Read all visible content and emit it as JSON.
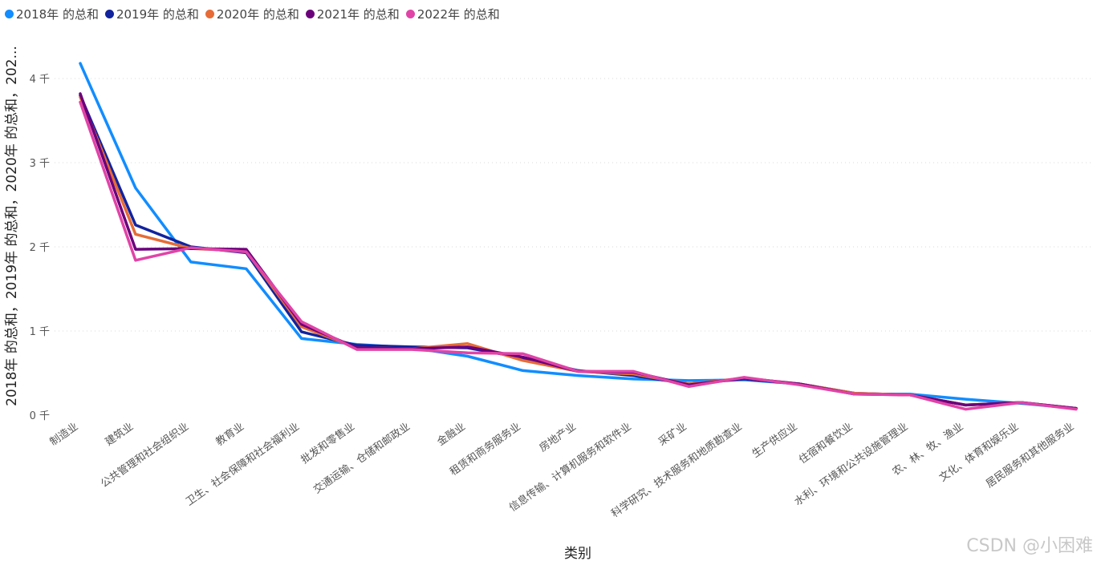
{
  "chart_data": {
    "type": "line",
    "title": "",
    "xlabel": "类别",
    "ylabel": "2018年 的总和，2019年 的总和，2020年 的总和，202...",
    "ylim": [
      0,
      4.5
    ],
    "yticks": [
      0,
      1,
      2,
      3,
      4
    ],
    "ytick_labels": [
      "0 千",
      "1 千",
      "2 千",
      "3 千",
      "4 千"
    ],
    "grid": true,
    "legend_position": "top-left",
    "categories": [
      "制造业",
      "建筑业",
      "公共管理和社会组织业",
      "教育业",
      "卫生、社会保障和社会福利业",
      "批发和零售业",
      "交通运输、仓储和邮政业",
      "金融业",
      "租赁和商务服务业",
      "房地产业",
      "信息传输、计算机服务和软件业",
      "采矿业",
      "科学研究、技术服务和地质勘查业",
      "生产供应业",
      "住宿和餐饮业",
      "水利、环境和公共设施管理业",
      "农、林、牧、渔业",
      "文化、体育和娱乐业",
      "居民服务和其他服务业"
    ],
    "series": [
      {
        "name": "2018年 的总和",
        "color": "#118DFF",
        "values": [
          4.18,
          2.7,
          1.82,
          1.74,
          0.91,
          0.84,
          0.8,
          0.7,
          0.53,
          0.47,
          0.43,
          0.41,
          0.42,
          0.37,
          0.25,
          0.25,
          0.19,
          0.14,
          0.08
        ]
      },
      {
        "name": "2019年 的总和",
        "color": "#12239E",
        "values": [
          3.8,
          2.26,
          2.0,
          1.93,
          0.99,
          0.83,
          0.81,
          0.8,
          0.68,
          0.53,
          0.47,
          0.37,
          0.43,
          0.37,
          0.26,
          0.24,
          0.12,
          0.15,
          0.08
        ]
      },
      {
        "name": "2020年 的总和",
        "color": "#E66C37",
        "values": [
          3.78,
          2.15,
          1.98,
          1.95,
          1.05,
          0.8,
          0.79,
          0.85,
          0.65,
          0.52,
          0.49,
          0.37,
          0.44,
          0.37,
          0.26,
          0.24,
          0.12,
          0.15,
          0.08
        ]
      },
      {
        "name": "2021年 的总和",
        "color": "#6B007B",
        "values": [
          3.82,
          1.97,
          1.98,
          1.97,
          1.08,
          0.8,
          0.79,
          0.81,
          0.69,
          0.52,
          0.51,
          0.36,
          0.44,
          0.37,
          0.25,
          0.24,
          0.12,
          0.15,
          0.08
        ]
      },
      {
        "name": "2022年 的总和",
        "color": "#E044A7",
        "values": [
          3.72,
          1.84,
          1.99,
          1.94,
          1.11,
          0.78,
          0.78,
          0.74,
          0.73,
          0.52,
          0.52,
          0.34,
          0.45,
          0.36,
          0.25,
          0.24,
          0.07,
          0.15,
          0.07
        ]
      }
    ]
  },
  "watermark": "CSDN @小困难"
}
